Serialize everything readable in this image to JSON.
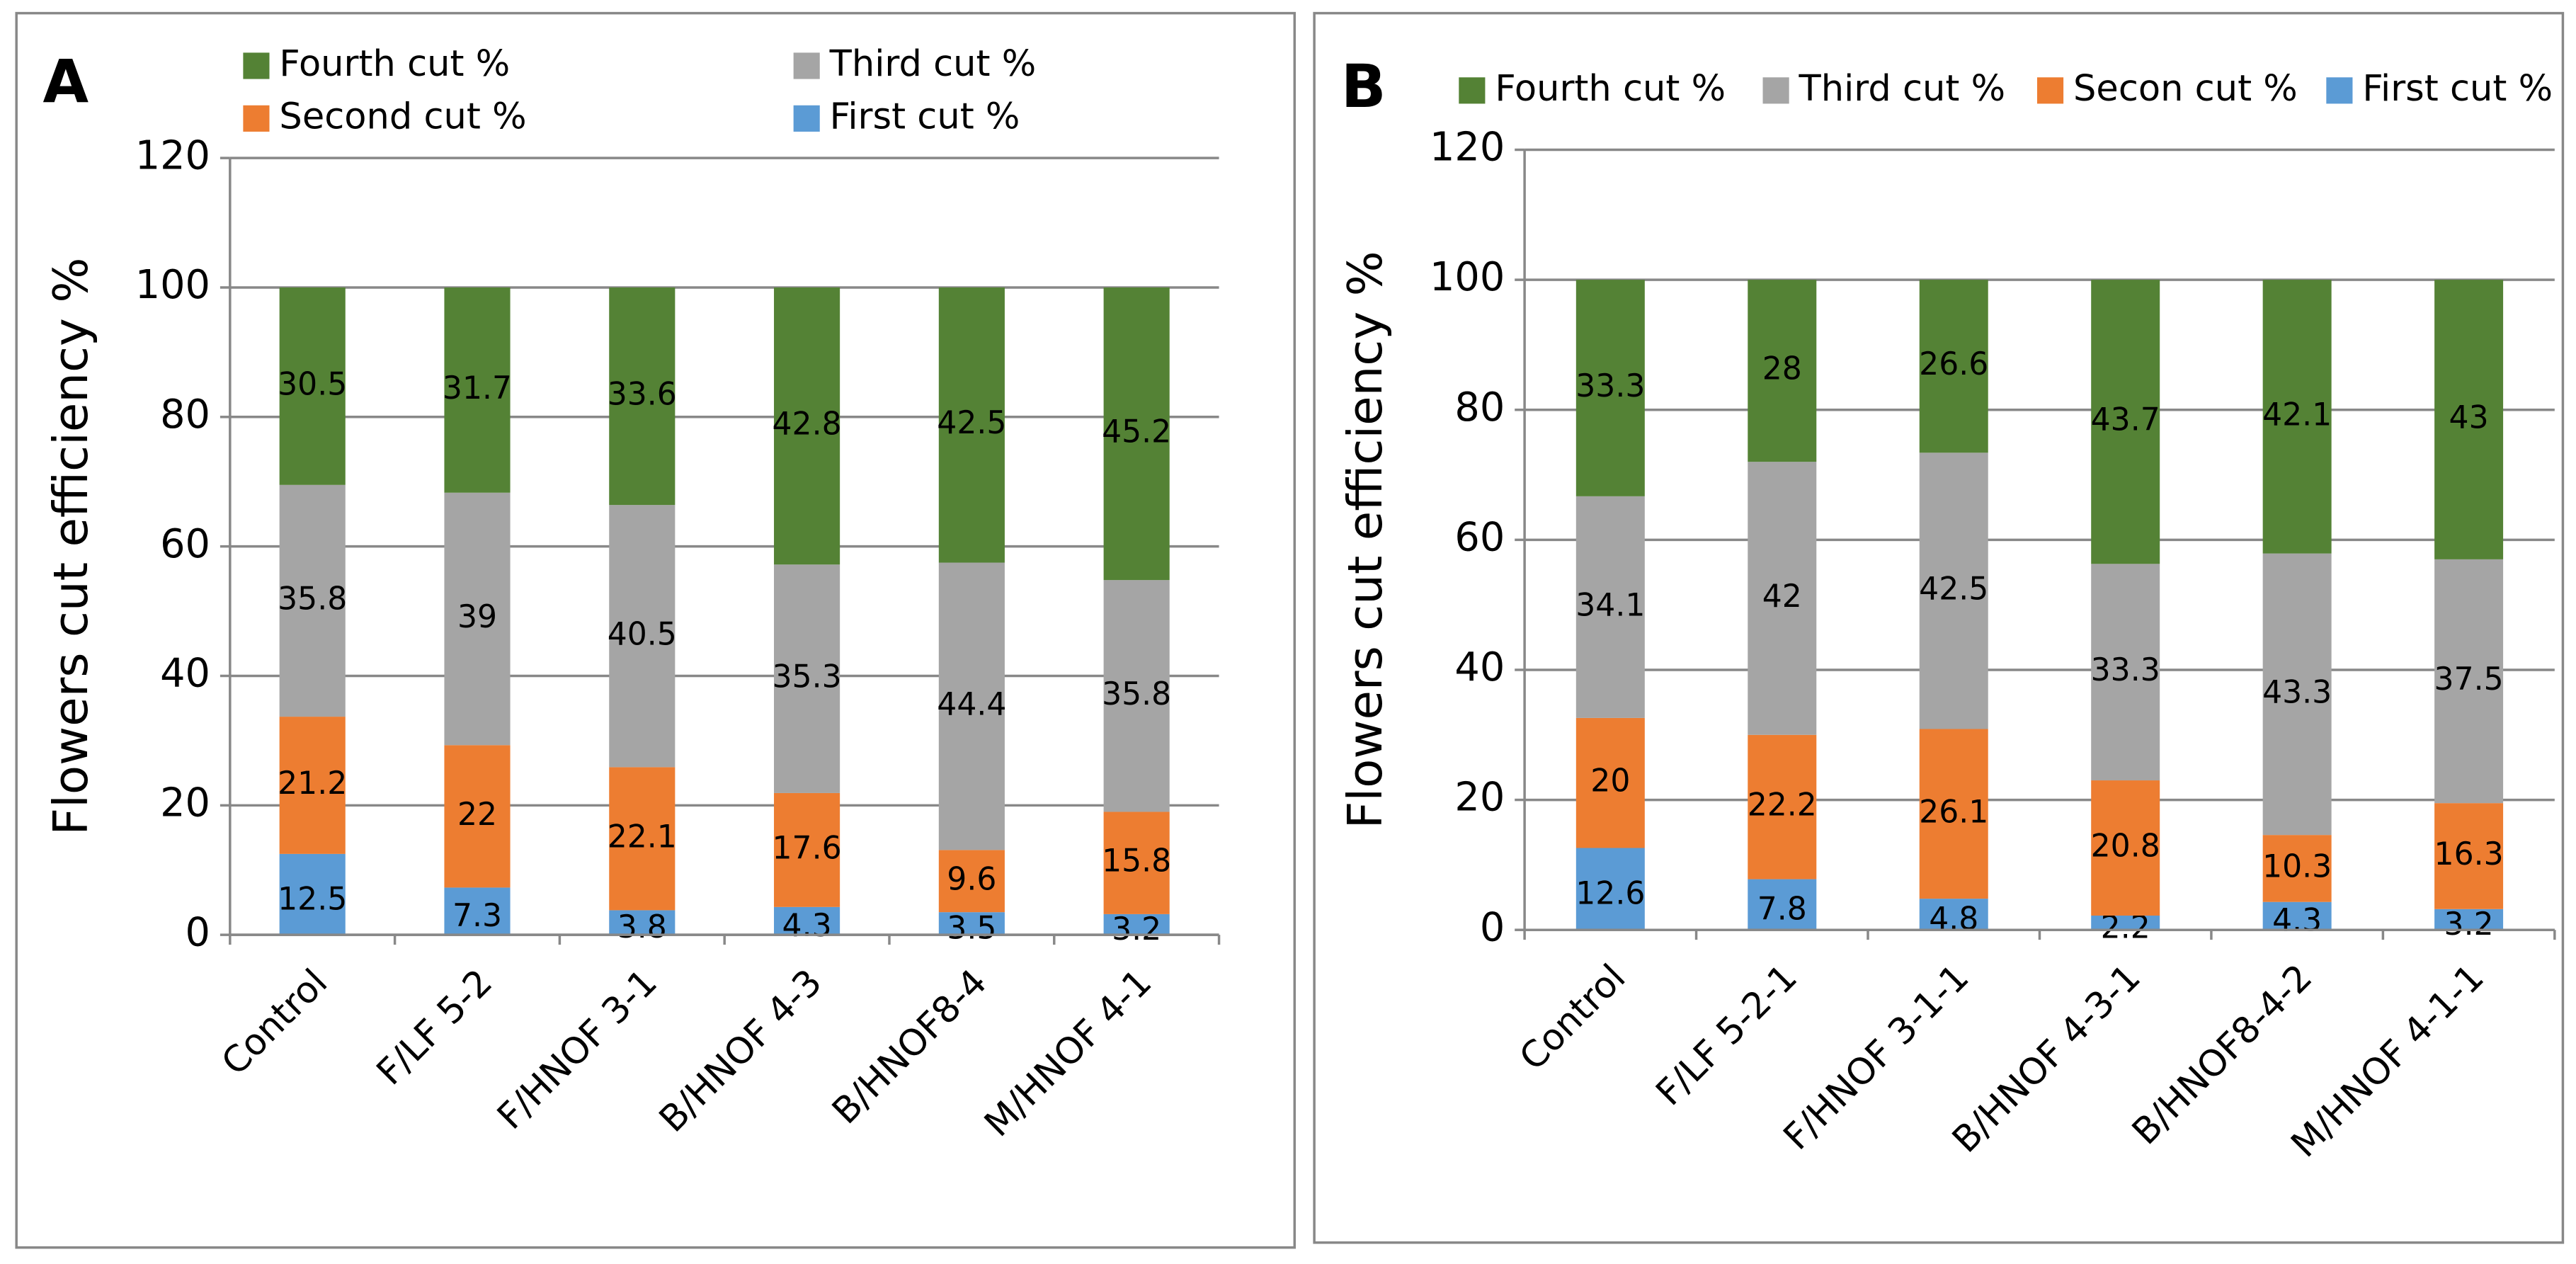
{
  "chart_data": [
    {
      "type": "stacked_bar",
      "panel": "A",
      "y_label": "Flowers cut efficiency %",
      "categories": [
        "Control",
        "F/LF 5-2",
        "F/HNOF  3-1",
        "B/HNOF 4-3",
        "B/HNOF8-4",
        "M/HNOF 4-1"
      ],
      "series": [
        {
          "name": "First cut %",
          "color": "#5b9bd5",
          "values": [
            12.5,
            7.3,
            3.8,
            4.3,
            3.5,
            3.2
          ]
        },
        {
          "name": "Second cut %",
          "color": "#ed7d31",
          "values": [
            21.2,
            22,
            22.1,
            17.6,
            9.6,
            15.8
          ]
        },
        {
          "name": "Third cut %",
          "color": "#a5a5a5",
          "values": [
            35.8,
            39,
            40.5,
            35.3,
            44.4,
            35.8
          ]
        },
        {
          "name": "Fourth cut %",
          "color": "#548235",
          "values": [
            30.5,
            31.7,
            33.6,
            42.8,
            42.5,
            45.2
          ]
        }
      ],
      "ylim": [
        0,
        120
      ],
      "yticks": [
        0,
        20,
        40,
        60,
        80,
        100,
        120
      ],
      "grid": true,
      "legend": "top-grid"
    },
    {
      "type": "stacked_bar",
      "panel": "B",
      "y_label": "Flowers cut efficiency %",
      "categories": [
        "Control",
        "F/LF 5-2-1",
        "F/HNOF  3-1-1",
        "B/HNOF 4-3-1",
        "B/HNOF8-4-2",
        "M/HNOF 4-1-1"
      ],
      "series": [
        {
          "name": "First cut %",
          "color": "#5b9bd5",
          "values": [
            12.6,
            7.8,
            4.8,
            2.2,
            4.3,
            3.2
          ]
        },
        {
          "name": "Secon cut %",
          "color": "#ed7d31",
          "values": [
            20,
            22.2,
            26.1,
            20.8,
            10.3,
            16.3
          ]
        },
        {
          "name": "Third cut %",
          "color": "#a5a5a5",
          "values": [
            34.1,
            42,
            42.5,
            33.3,
            43.3,
            37.5
          ]
        },
        {
          "name": "Fourth cut %",
          "color": "#548235",
          "values": [
            33.3,
            28,
            26.6,
            43.7,
            42.1,
            43
          ]
        }
      ],
      "ylim": [
        0,
        120
      ],
      "yticks": [
        0,
        20,
        40,
        60,
        80,
        100,
        120
      ],
      "grid": true,
      "legend": "top-row"
    }
  ]
}
